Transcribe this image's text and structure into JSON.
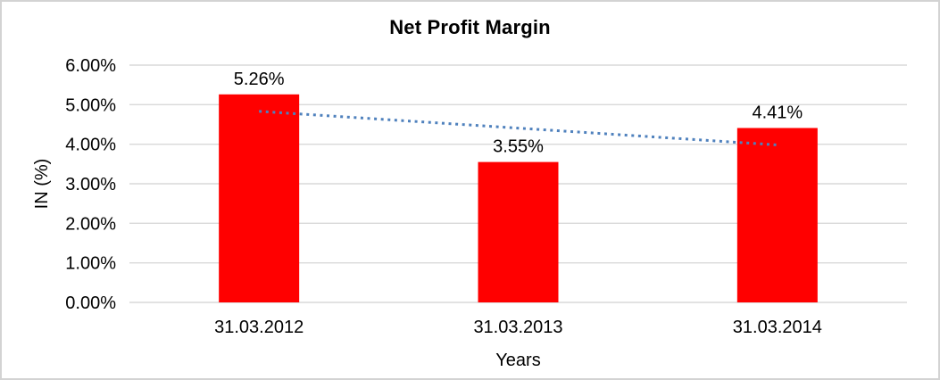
{
  "chart_data": {
    "type": "bar",
    "title": "Net Profit Margin",
    "categories": [
      "31.03.2012",
      "31.03.2013",
      "31.03.2014"
    ],
    "values": [
      5.26,
      3.55,
      4.41
    ],
    "value_labels": [
      "5.26%",
      "3.55%",
      "4.41%"
    ],
    "xlabel": "Years",
    "ylabel": "IN (%)",
    "ylim": [
      0,
      6
    ],
    "ytick_step": 1,
    "ytick_labels": [
      "0.00%",
      "1.00%",
      "2.00%",
      "3.00%",
      "4.00%",
      "5.00%",
      "6.00%"
    ],
    "grid": true,
    "legend": false,
    "trendline": {
      "type": "linear",
      "style": "dotted",
      "color": "#4F81BD"
    },
    "colors": {
      "bar": "#FF0000",
      "gridline": "#D9D9D9",
      "axis_line": "#D9D9D9",
      "text": "#000000",
      "border": "#D3D3D3",
      "background": "#FFFFFF"
    }
  }
}
